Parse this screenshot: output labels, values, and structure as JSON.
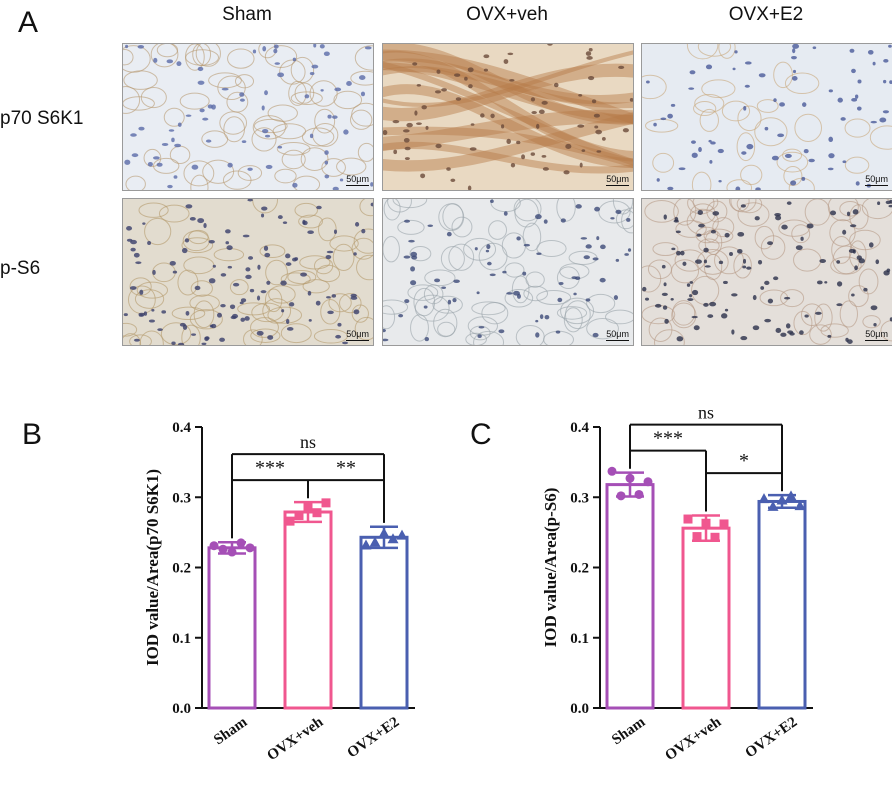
{
  "panel_a": {
    "letter": "A",
    "column_headers": [
      "Sham",
      "OVX+veh",
      "OVX+E2"
    ],
    "row_headers": [
      "p70 S6K1",
      "p-S6"
    ],
    "scale_label": "50μm",
    "images": [
      {
        "row": 0,
        "col": 0,
        "bg": "#e9edf3",
        "stain": "#b79a72",
        "nuclei": "#5a6aa8",
        "pattern": "cells"
      },
      {
        "row": 0,
        "col": 1,
        "bg": "#e9d9c2",
        "stain": "#b57a48",
        "nuclei": "#6a4a3a",
        "pattern": "fibrous"
      },
      {
        "row": 0,
        "col": 2,
        "bg": "#e6ebf2",
        "stain": "#c8a67a",
        "nuclei": "#4a5a98",
        "pattern": "sparse"
      },
      {
        "row": 1,
        "col": 0,
        "bg": "#e2dccf",
        "stain": "#b49a6a",
        "nuclei": "#3a3f6a",
        "pattern": "dense"
      },
      {
        "row": 1,
        "col": 1,
        "bg": "#e8eaec",
        "stain": "#9aa4aa",
        "nuclei": "#3c4a78",
        "pattern": "vessels"
      },
      {
        "row": 1,
        "col": 2,
        "bg": "#e4dfda",
        "stain": "#b59a86",
        "nuclei": "#2a2f4a",
        "pattern": "dots"
      }
    ]
  },
  "chart_data": [
    {
      "panel": "B",
      "type": "bar",
      "ylabel": "IOD value/Area(p70 S6K1)",
      "ylim": [
        0,
        0.4
      ],
      "yticks": [
        "0.0",
        "0.1",
        "0.2",
        "0.3",
        "0.4"
      ],
      "categories": [
        "Sham",
        "OVX+veh",
        "OVX+E2"
      ],
      "colors": [
        "#a54fb6",
        "#f0578f",
        "#4a5fb0"
      ],
      "markers": [
        "circle",
        "square",
        "triangle"
      ],
      "values": [
        0.228,
        0.279,
        0.243
      ],
      "errors": [
        0.008,
        0.014,
        0.015
      ],
      "points": [
        [
          0.231,
          0.226,
          0.222,
          0.235,
          0.228
        ],
        [
          0.266,
          0.274,
          0.286,
          0.278,
          0.292
        ],
        [
          0.232,
          0.236,
          0.249,
          0.241,
          0.246
        ]
      ],
      "comparisons": [
        {
          "from": 0,
          "to": 2,
          "label": "ns"
        },
        {
          "from": 0,
          "to": 1,
          "label": "***"
        },
        {
          "from": 1,
          "to": 2,
          "label": "**"
        }
      ]
    },
    {
      "panel": "C",
      "type": "bar",
      "ylabel": "IOD value/Area(p-S6)",
      "ylim": [
        0,
        0.4
      ],
      "yticks": [
        "0.0",
        "0.1",
        "0.2",
        "0.3",
        "0.4"
      ],
      "categories": [
        "Sham",
        "OVX+veh",
        "OVX+E2"
      ],
      "colors": [
        "#a54fb6",
        "#f0578f",
        "#4a5fb0"
      ],
      "markers": [
        "circle",
        "square",
        "triangle"
      ],
      "values": [
        0.318,
        0.256,
        0.294
      ],
      "errors": [
        0.017,
        0.018,
        0.009
      ],
      "points": [
        [
          0.337,
          0.302,
          0.327,
          0.304,
          0.322
        ],
        [
          0.269,
          0.244,
          0.263,
          0.243,
          0.262
        ],
        [
          0.298,
          0.287,
          0.296,
          0.302,
          0.288
        ]
      ],
      "comparisons": [
        {
          "from": 0,
          "to": 2,
          "label": "ns"
        },
        {
          "from": 0,
          "to": 1,
          "label": "***"
        },
        {
          "from": 1,
          "to": 2,
          "label": "*"
        }
      ]
    }
  ]
}
